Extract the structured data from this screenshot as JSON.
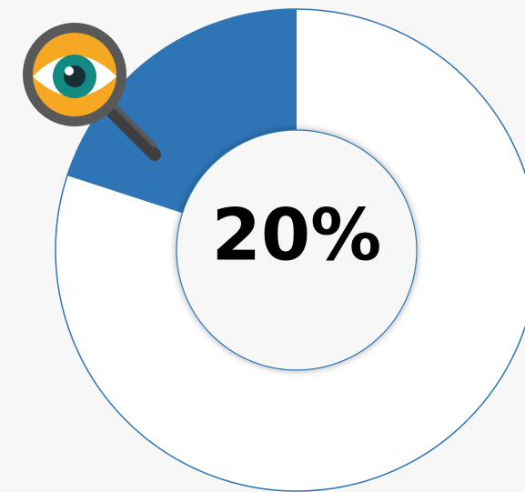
{
  "chart_data": {
    "type": "donut",
    "values": [
      20
    ],
    "value_labels": [
      "20%"
    ],
    "total": 100,
    "color": "#2e75b6",
    "rest_color": "#ffffff",
    "outline_color": "#2e75b6"
  }
}
